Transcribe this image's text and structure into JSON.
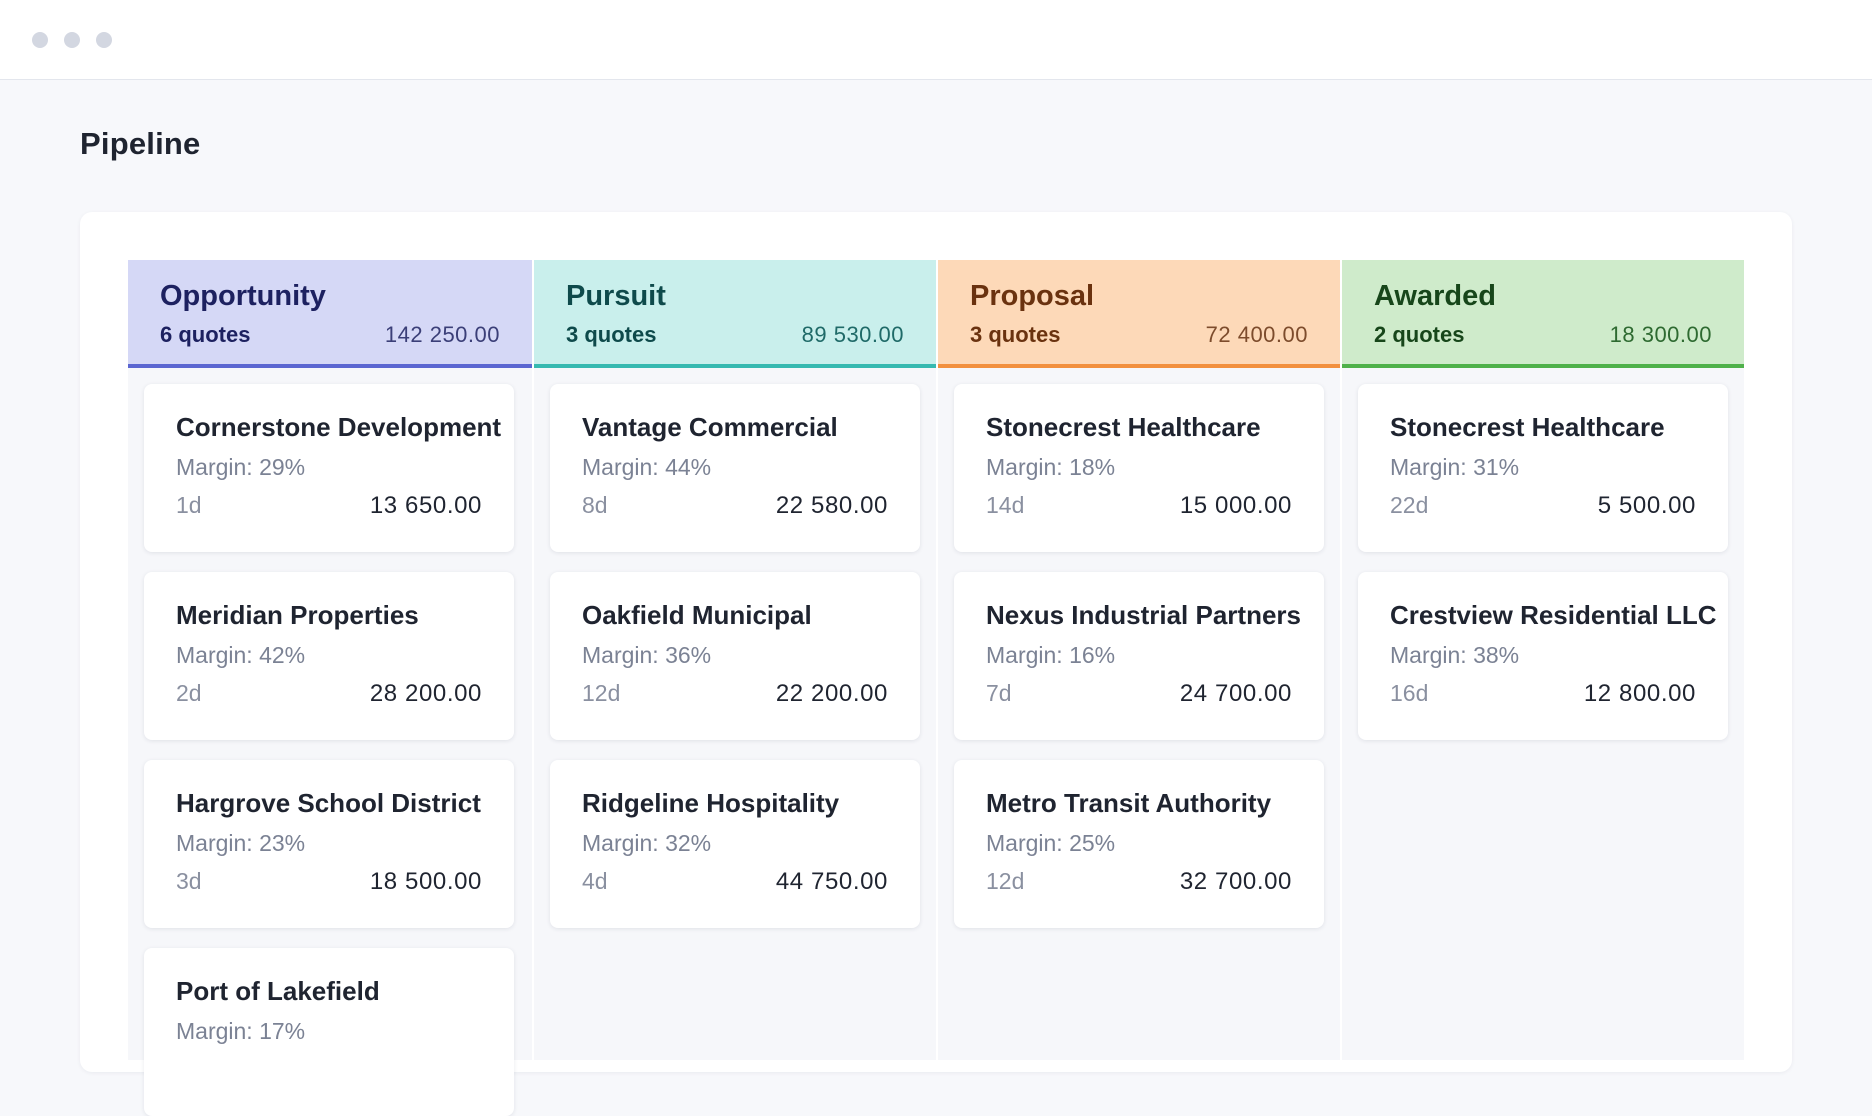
{
  "window": {
    "controls": [
      "close",
      "minimize",
      "maximize"
    ]
  },
  "page": {
    "title": "Pipeline"
  },
  "columns": [
    {
      "id": "opportunity",
      "title": "Opportunity",
      "count": "6 quotes",
      "total": "142 250.00",
      "accent": "#5b66d1",
      "cards": [
        {
          "name": "Cornerstone Development",
          "margin": "Margin: 29%",
          "age": "1d",
          "amount": "13 650.00"
        },
        {
          "name": "Meridian Properties",
          "margin": "Margin: 42%",
          "age": "2d",
          "amount": "28 200.00"
        },
        {
          "name": "Hargrove School District",
          "margin": "Margin: 23%",
          "age": "3d",
          "amount": "18 500.00"
        },
        {
          "name": "Port of Lakefield",
          "margin": "Margin: 17%",
          "age": "",
          "amount": ""
        }
      ]
    },
    {
      "id": "pursuit",
      "title": "Pursuit",
      "count": "3 quotes",
      "total": "89 530.00",
      "accent": "#36b9b0",
      "cards": [
        {
          "name": "Vantage Commercial",
          "margin": "Margin: 44%",
          "age": "8d",
          "amount": "22 580.00"
        },
        {
          "name": "Oakfield Municipal",
          "margin": "Margin: 36%",
          "age": "12d",
          "amount": "22 200.00"
        },
        {
          "name": "Ridgeline Hospitality",
          "margin": "Margin: 32%",
          "age": "4d",
          "amount": "44 750.00"
        }
      ]
    },
    {
      "id": "proposal",
      "title": "Proposal",
      "count": "3 quotes",
      "total": "72 400.00",
      "accent": "#f2903e",
      "cards": [
        {
          "name": "Stonecrest Healthcare",
          "margin": "Margin: 18%",
          "age": "14d",
          "amount": "15 000.00"
        },
        {
          "name": "Nexus Industrial Partners",
          "margin": "Margin: 16%",
          "age": "7d",
          "amount": "24 700.00"
        },
        {
          "name": "Metro Transit Authority",
          "margin": "Margin: 25%",
          "age": "12d",
          "amount": "32 700.00"
        }
      ]
    },
    {
      "id": "awarded",
      "title": "Awarded",
      "count": "2 quotes",
      "total": "18 300.00",
      "accent": "#4fb14a",
      "cards": [
        {
          "name": "Stonecrest Healthcare",
          "margin": "Margin: 31%",
          "age": "22d",
          "amount": "5 500.00"
        },
        {
          "name": "Crestview Residential LLC",
          "margin": "Margin: 38%",
          "age": "16d",
          "amount": "12 800.00"
        }
      ]
    }
  ]
}
